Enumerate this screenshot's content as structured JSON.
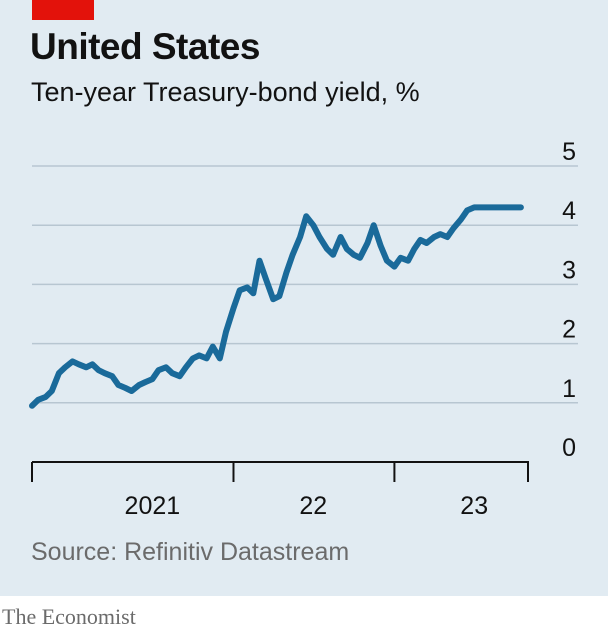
{
  "header": {
    "title": "United States",
    "subtitle": "Ten-year Treasury-bond yield, %"
  },
  "source": "Source: Refinitiv Datastream",
  "brand": "The Economist",
  "colors": {
    "background": "#e1ebf2",
    "accent": "#e3120b",
    "line": "#1a6a9a",
    "grid": "#b7c6d1",
    "axis": "#121212"
  },
  "chart_data": {
    "type": "line",
    "title": "Ten-year Treasury-bond yield, %",
    "xlabel": "",
    "ylabel": "",
    "ylim": [
      0,
      5
    ],
    "xlim": [
      "2020-10-01",
      "2023-10-31"
    ],
    "y_ticks": [
      "0",
      "1",
      "2",
      "3",
      "4",
      "5"
    ],
    "x_ticks": [
      {
        "label": "2021",
        "at": "2021-07-01"
      },
      {
        "label": "22",
        "at": "2022-07-01"
      },
      {
        "label": "23",
        "at": "2023-07-01"
      }
    ],
    "x_boundaries": [
      "2020-10-01",
      "2022-01-01",
      "2023-01-01",
      "2023-10-31"
    ],
    "grid": true,
    "legend": "none",
    "series": [
      {
        "x": [
          "2020-10-01",
          "2020-10-15",
          "2020-11-01",
          "2020-11-15",
          "2020-12-01",
          "2020-12-15",
          "2021-01-01",
          "2021-01-15",
          "2021-02-01",
          "2021-02-15",
          "2021-03-01",
          "2021-03-15",
          "2021-04-01",
          "2021-04-15",
          "2021-05-01",
          "2021-05-15",
          "2021-06-01",
          "2021-06-15",
          "2021-07-01",
          "2021-07-15",
          "2021-08-01",
          "2021-08-15",
          "2021-09-01",
          "2021-09-15",
          "2021-10-01",
          "2021-10-15",
          "2021-11-01",
          "2021-11-15",
          "2021-12-01",
          "2021-12-15",
          "2022-01-01",
          "2022-01-15",
          "2022-02-01",
          "2022-02-15",
          "2022-03-01",
          "2022-03-15",
          "2022-04-01",
          "2022-04-15",
          "2022-05-01",
          "2022-05-15",
          "2022-06-01",
          "2022-06-15",
          "2022-07-01",
          "2022-07-15",
          "2022-08-01",
          "2022-08-15",
          "2022-09-01",
          "2022-09-15",
          "2022-10-01",
          "2022-10-15",
          "2022-11-01",
          "2022-11-15",
          "2022-12-01",
          "2022-12-15",
          "2023-01-01",
          "2023-01-15",
          "2023-02-01",
          "2023-02-15",
          "2023-03-01",
          "2023-03-15",
          "2023-04-01",
          "2023-04-15",
          "2023-05-01",
          "2023-05-15",
          "2023-06-01",
          "2023-06-15",
          "2023-07-01",
          "2023-07-15",
          "2023-08-01",
          "2023-08-15",
          "2023-09-01",
          "2023-09-15",
          "2023-10-01",
          "2023-10-15"
        ],
        "values": [
          0.95,
          1.05,
          1.1,
          1.2,
          1.5,
          1.6,
          1.7,
          1.65,
          1.6,
          1.65,
          1.55,
          1.5,
          1.45,
          1.3,
          1.25,
          1.2,
          1.3,
          1.35,
          1.4,
          1.55,
          1.6,
          1.5,
          1.45,
          1.6,
          1.75,
          1.8,
          1.75,
          1.95,
          1.75,
          2.2,
          2.6,
          2.9,
          2.95,
          2.85,
          3.4,
          3.1,
          2.75,
          2.8,
          3.2,
          3.5,
          3.8,
          4.15,
          4.0,
          3.8,
          3.6,
          3.5,
          3.8,
          3.6,
          3.5,
          3.45,
          3.7,
          4.0,
          3.65,
          3.4,
          3.3,
          3.45,
          3.4,
          3.6,
          3.75,
          3.7,
          3.8,
          3.85,
          3.8,
          3.95,
          4.1,
          4.25,
          4.3,
          4.3,
          4.3,
          4.3,
          4.3,
          4.3,
          4.3,
          4.3
        ]
      }
    ]
  }
}
